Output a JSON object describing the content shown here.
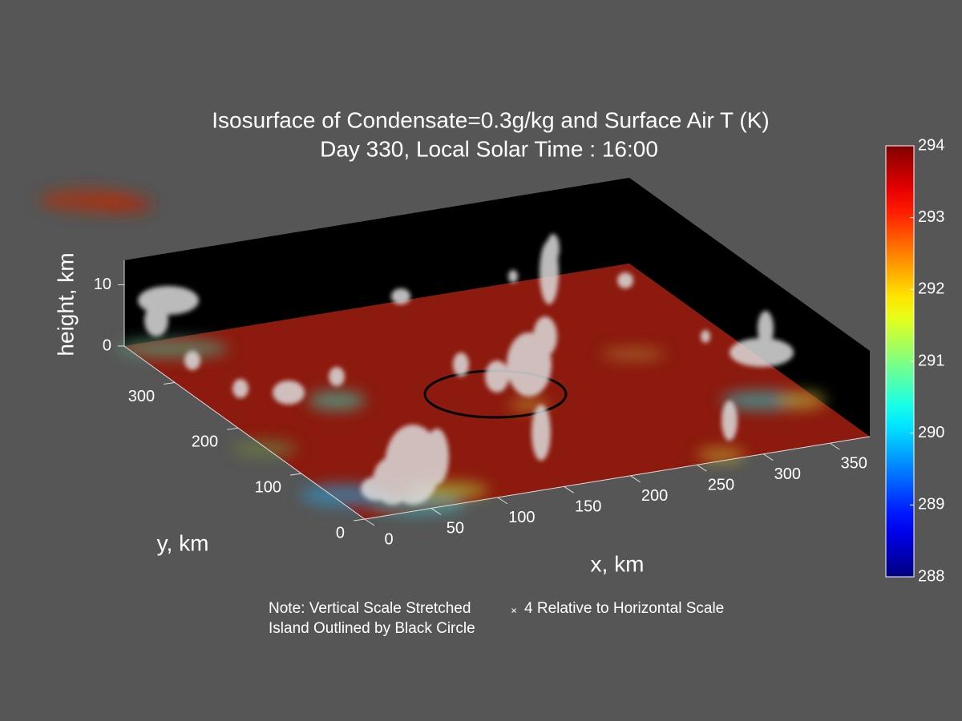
{
  "chart_data": {
    "type": "isosurface3d",
    "title": "Isosurface of Condensate=0.3g/kg and Surface Air T (K)",
    "subtitle": "Day 330, Local Solar Time : 16:00",
    "xlabel": "x, km",
    "ylabel": "y, km",
    "zlabel": "height, km",
    "xlim": [
      0,
      380
    ],
    "ylim": [
      0,
      380
    ],
    "zlim": [
      0,
      14
    ],
    "xticks": [
      0,
      50,
      100,
      150,
      200,
      250,
      300,
      350
    ],
    "yticks": [
      0,
      100,
      200,
      300
    ],
    "zticks": [
      0,
      10
    ],
    "colorbar": {
      "clim": [
        288,
        294
      ],
      "ticks": [
        288,
        289,
        290,
        291,
        292,
        293,
        294
      ],
      "colormap": "jet"
    },
    "notes": [
      "Note: Vertical Scale Stretched",
      "×",
      "4 Relative to Horizontal Scale",
      "Island Outlined by Black Circle"
    ]
  }
}
